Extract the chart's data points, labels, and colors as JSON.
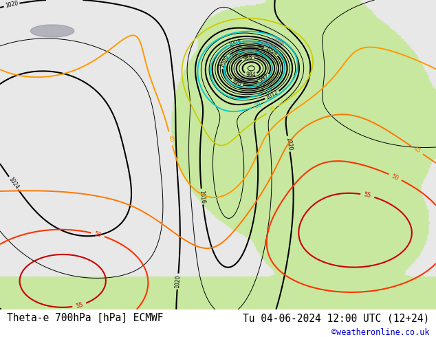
{
  "title_left": "Theta-e 700hPa [hPa] ECMWF",
  "title_right": "Tu 04-06-2024 12:00 UTC (12+24)",
  "copyright": "©weatheronline.co.uk",
  "fig_width": 6.34,
  "fig_height": 4.9,
  "dpi": 100,
  "bottom_bar_height": 0.082,
  "title_fontsize": 10.5,
  "copyright_color": "#0000cc",
  "title_color": "#000000",
  "land_color": "#c8e8a0",
  "ocean_color": "#e8e8e8",
  "gray_color": "#b0b0b0"
}
